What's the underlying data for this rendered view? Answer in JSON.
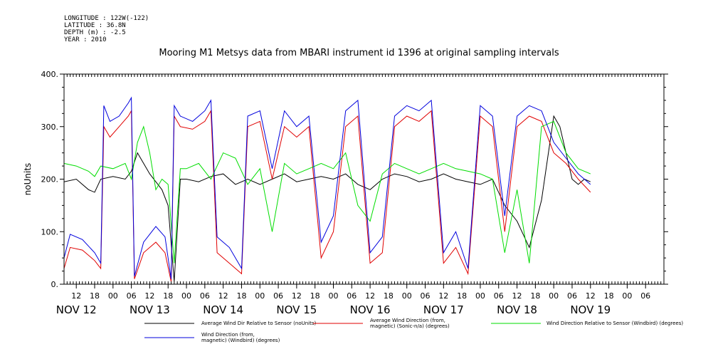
{
  "header": {
    "longitude": "LONGITUDE : 122W(-122)",
    "latitude": "LATITUDE : 36.8N",
    "depth": "DEPTH (m) : -2.5",
    "year": "YEAR : 2010",
    "title": "Mooring M1 Metsys data from MBARI instrument id 1396 at original sampling intervals"
  },
  "chart_data": {
    "type": "line",
    "title": "Mooring M1 Metsys data from MBARI instrument id 1396 at original sampling intervals",
    "ylabel": "noUnits",
    "xlabel": "",
    "ylim": [
      0,
      400
    ],
    "y_ticks": [
      0,
      100,
      200,
      300,
      400
    ],
    "y_tick_labels": [
      "0.",
      "100.",
      "200.",
      "300.",
      "400."
    ],
    "xlim": [
      "2010-11-11T08:00",
      "2010-11-19T12:00"
    ],
    "x_hour_labels": [
      {
        "t": "2010-11-11T12:00",
        "label": "12"
      },
      {
        "t": "2010-11-11T18:00",
        "label": "18"
      },
      {
        "t": "2010-11-12T00:00",
        "label": "00"
      },
      {
        "t": "2010-11-12T06:00",
        "label": "06"
      },
      {
        "t": "2010-11-12T12:00",
        "label": "12"
      },
      {
        "t": "2010-11-12T18:00",
        "label": "18"
      },
      {
        "t": "2010-11-13T00:00",
        "label": "00"
      },
      {
        "t": "2010-11-13T06:00",
        "label": "06"
      },
      {
        "t": "2010-11-13T12:00",
        "label": "12"
      },
      {
        "t": "2010-11-13T18:00",
        "label": "18"
      },
      {
        "t": "2010-11-14T00:00",
        "label": "00"
      },
      {
        "t": "2010-11-14T06:00",
        "label": "06"
      },
      {
        "t": "2010-11-14T12:00",
        "label": "12"
      },
      {
        "t": "2010-11-14T18:00",
        "label": "18"
      },
      {
        "t": "2010-11-15T00:00",
        "label": "00"
      },
      {
        "t": "2010-11-15T06:00",
        "label": "06"
      },
      {
        "t": "2010-11-15T12:00",
        "label": "12"
      },
      {
        "t": "2010-11-15T18:00",
        "label": "18"
      },
      {
        "t": "2010-11-16T00:00",
        "label": "00"
      },
      {
        "t": "2010-11-16T06:00",
        "label": "06"
      },
      {
        "t": "2010-11-16T12:00",
        "label": "12"
      },
      {
        "t": "2010-11-16T18:00",
        "label": "18"
      },
      {
        "t": "2010-11-17T00:00",
        "label": "00"
      },
      {
        "t": "2010-11-17T06:00",
        "label": "06"
      },
      {
        "t": "2010-11-17T12:00",
        "label": "12"
      },
      {
        "t": "2010-11-17T18:00",
        "label": "18"
      },
      {
        "t": "2010-11-18T00:00",
        "label": "00"
      },
      {
        "t": "2010-11-18T06:00",
        "label": "06"
      },
      {
        "t": "2010-11-18T12:00",
        "label": "12"
      },
      {
        "t": "2010-11-18T18:00",
        "label": "18"
      },
      {
        "t": "2010-11-19T00:00",
        "label": "00"
      },
      {
        "t": "2010-11-19T06:00",
        "label": "06"
      }
    ],
    "x_day_labels": [
      {
        "t": "2010-11-11T12:00",
        "label": "NOV 12"
      },
      {
        "t": "2010-11-12T12:00",
        "label": "NOV 13"
      },
      {
        "t": "2010-11-13T12:00",
        "label": "NOV 14"
      },
      {
        "t": "2010-11-14T12:00",
        "label": "NOV 15"
      },
      {
        "t": "2010-11-15T12:00",
        "label": "NOV 16"
      },
      {
        "t": "2010-11-16T12:00",
        "label": "NOV 17"
      },
      {
        "t": "2010-11-17T12:00",
        "label": "NOV 18"
      },
      {
        "t": "2010-11-18T12:00",
        "label": "NOV 19"
      }
    ],
    "legend_position": "bottom",
    "series": [
      {
        "name": "Average Wind Dir Relative to Sensor (noUnits)",
        "color": "#000000",
        "points": [
          [
            "2010-11-11T08:00",
            195
          ],
          [
            "2010-11-11T12:00",
            200
          ],
          [
            "2010-11-11T16:00",
            180
          ],
          [
            "2010-11-11T18:00",
            175
          ],
          [
            "2010-11-11T20:00",
            200
          ],
          [
            "2010-11-12T00:00",
            205
          ],
          [
            "2010-11-12T04:00",
            200
          ],
          [
            "2010-11-12T06:00",
            215
          ],
          [
            "2010-11-12T08:00",
            250
          ],
          [
            "2010-11-12T10:00",
            230
          ],
          [
            "2010-11-12T12:00",
            210
          ],
          [
            "2010-11-12T14:00",
            195
          ],
          [
            "2010-11-12T16:00",
            180
          ],
          [
            "2010-11-12T18:00",
            150
          ],
          [
            "2010-11-12T20:00",
            5
          ],
          [
            "2010-11-12T22:00",
            200
          ],
          [
            "2010-11-13T00:00",
            200
          ],
          [
            "2010-11-13T04:00",
            195
          ],
          [
            "2010-11-13T08:00",
            205
          ],
          [
            "2010-11-13T12:00",
            210
          ],
          [
            "2010-11-13T16:00",
            190
          ],
          [
            "2010-11-13T20:00",
            200
          ],
          [
            "2010-11-14T00:00",
            190
          ],
          [
            "2010-11-14T04:00",
            200
          ],
          [
            "2010-11-14T08:00",
            210
          ],
          [
            "2010-11-14T12:00",
            195
          ],
          [
            "2010-11-14T16:00",
            200
          ],
          [
            "2010-11-14T20:00",
            205
          ],
          [
            "2010-11-15T00:00",
            200
          ],
          [
            "2010-11-15T04:00",
            210
          ],
          [
            "2010-11-15T08:00",
            190
          ],
          [
            "2010-11-15T12:00",
            180
          ],
          [
            "2010-11-15T16:00",
            200
          ],
          [
            "2010-11-15T20:00",
            210
          ],
          [
            "2010-11-16T00:00",
            205
          ],
          [
            "2010-11-16T04:00",
            195
          ],
          [
            "2010-11-16T08:00",
            200
          ],
          [
            "2010-11-16T12:00",
            210
          ],
          [
            "2010-11-16T16:00",
            200
          ],
          [
            "2010-11-16T20:00",
            195
          ],
          [
            "2010-11-17T00:00",
            190
          ],
          [
            "2010-11-17T04:00",
            200
          ],
          [
            "2010-11-17T08:00",
            150
          ],
          [
            "2010-11-17T12:00",
            120
          ],
          [
            "2010-11-17T16:00",
            70
          ],
          [
            "2010-11-17T20:00",
            160
          ],
          [
            "2010-11-18T00:00",
            320
          ],
          [
            "2010-11-18T02:00",
            300
          ],
          [
            "2010-11-18T04:00",
            250
          ],
          [
            "2010-11-18T06:00",
            200
          ],
          [
            "2010-11-18T08:00",
            190
          ],
          [
            "2010-11-18T10:00",
            200
          ],
          [
            "2010-11-18T12:00",
            195
          ]
        ]
      },
      {
        "name": "Average Wind Direction (from, magnetic) (Sonic-n/a) (degrees)",
        "color": "#e00000",
        "points": [
          [
            "2010-11-11T08:00",
            30
          ],
          [
            "2010-11-11T10:00",
            70
          ],
          [
            "2010-11-11T14:00",
            65
          ],
          [
            "2010-11-11T18:00",
            45
          ],
          [
            "2010-11-11T20:00",
            30
          ],
          [
            "2010-11-11T21:00",
            300
          ],
          [
            "2010-11-11T23:00",
            280
          ],
          [
            "2010-11-12T02:00",
            300
          ],
          [
            "2010-11-12T05:00",
            320
          ],
          [
            "2010-11-12T06:00",
            330
          ],
          [
            "2010-11-12T07:00",
            10
          ],
          [
            "2010-11-12T10:00",
            60
          ],
          [
            "2010-11-12T14:00",
            80
          ],
          [
            "2010-11-12T17:00",
            60
          ],
          [
            "2010-11-12T19:00",
            5
          ],
          [
            "2010-11-12T20:00",
            320
          ],
          [
            "2010-11-12T22:00",
            300
          ],
          [
            "2010-11-13T02:00",
            295
          ],
          [
            "2010-11-13T06:00",
            310
          ],
          [
            "2010-11-13T08:00",
            330
          ],
          [
            "2010-11-13T10:00",
            60
          ],
          [
            "2010-11-13T14:00",
            40
          ],
          [
            "2010-11-13T18:00",
            20
          ],
          [
            "2010-11-13T20:00",
            300
          ],
          [
            "2010-11-14T00:00",
            310
          ],
          [
            "2010-11-14T04:00",
            200
          ],
          [
            "2010-11-14T08:00",
            300
          ],
          [
            "2010-11-14T12:00",
            280
          ],
          [
            "2010-11-14T16:00",
            300
          ],
          [
            "2010-11-14T20:00",
            50
          ],
          [
            "2010-11-15T00:00",
            100
          ],
          [
            "2010-11-15T04:00",
            300
          ],
          [
            "2010-11-15T08:00",
            320
          ],
          [
            "2010-11-15T12:00",
            40
          ],
          [
            "2010-11-15T16:00",
            60
          ],
          [
            "2010-11-15T20:00",
            300
          ],
          [
            "2010-11-16T00:00",
            320
          ],
          [
            "2010-11-16T04:00",
            310
          ],
          [
            "2010-11-16T08:00",
            330
          ],
          [
            "2010-11-16T12:00",
            40
          ],
          [
            "2010-11-16T16:00",
            70
          ],
          [
            "2010-11-16T20:00",
            20
          ],
          [
            "2010-11-17T00:00",
            320
          ],
          [
            "2010-11-17T04:00",
            300
          ],
          [
            "2010-11-17T08:00",
            100
          ],
          [
            "2010-11-17T12:00",
            300
          ],
          [
            "2010-11-17T16:00",
            320
          ],
          [
            "2010-11-17T20:00",
            310
          ],
          [
            "2010-11-18T00:00",
            250
          ],
          [
            "2010-11-18T04:00",
            230
          ],
          [
            "2010-11-18T08:00",
            200
          ],
          [
            "2010-11-18T12:00",
            175
          ]
        ]
      },
      {
        "name": "Wind Direction Relative to Sensor (Windbird) (degrees)",
        "color": "#00dd00",
        "points": [
          [
            "2010-11-11T08:00",
            230
          ],
          [
            "2010-11-11T12:00",
            225
          ],
          [
            "2010-11-11T16:00",
            215
          ],
          [
            "2010-11-11T18:00",
            205
          ],
          [
            "2010-11-11T20:00",
            225
          ],
          [
            "2010-11-12T00:00",
            220
          ],
          [
            "2010-11-12T04:00",
            230
          ],
          [
            "2010-11-12T06:00",
            200
          ],
          [
            "2010-11-12T08:00",
            270
          ],
          [
            "2010-11-12T10:00",
            300
          ],
          [
            "2010-11-12T12:00",
            250
          ],
          [
            "2010-11-12T14:00",
            180
          ],
          [
            "2010-11-12T16:00",
            200
          ],
          [
            "2010-11-12T18:00",
            190
          ],
          [
            "2010-11-12T20:00",
            40
          ],
          [
            "2010-11-12T22:00",
            220
          ],
          [
            "2010-11-13T00:00",
            220
          ],
          [
            "2010-11-13T04:00",
            230
          ],
          [
            "2010-11-13T08:00",
            200
          ],
          [
            "2010-11-13T12:00",
            250
          ],
          [
            "2010-11-13T16:00",
            240
          ],
          [
            "2010-11-13T20:00",
            190
          ],
          [
            "2010-11-14T00:00",
            220
          ],
          [
            "2010-11-14T04:00",
            100
          ],
          [
            "2010-11-14T08:00",
            230
          ],
          [
            "2010-11-14T12:00",
            210
          ],
          [
            "2010-11-14T16:00",
            220
          ],
          [
            "2010-11-14T20:00",
            230
          ],
          [
            "2010-11-15T00:00",
            220
          ],
          [
            "2010-11-15T04:00",
            250
          ],
          [
            "2010-11-15T08:00",
            150
          ],
          [
            "2010-11-15T12:00",
            120
          ],
          [
            "2010-11-15T16:00",
            210
          ],
          [
            "2010-11-15T20:00",
            230
          ],
          [
            "2010-11-16T00:00",
            220
          ],
          [
            "2010-11-16T04:00",
            210
          ],
          [
            "2010-11-16T08:00",
            220
          ],
          [
            "2010-11-16T12:00",
            230
          ],
          [
            "2010-11-16T16:00",
            220
          ],
          [
            "2010-11-16T20:00",
            215
          ],
          [
            "2010-11-17T00:00",
            210
          ],
          [
            "2010-11-17T04:00",
            200
          ],
          [
            "2010-11-17T08:00",
            60
          ],
          [
            "2010-11-17T12:00",
            180
          ],
          [
            "2010-11-17T16:00",
            40
          ],
          [
            "2010-11-17T20:00",
            300
          ],
          [
            "2010-11-18T00:00",
            310
          ],
          [
            "2010-11-18T04:00",
            250
          ],
          [
            "2010-11-18T08:00",
            220
          ],
          [
            "2010-11-18T12:00",
            210
          ]
        ]
      },
      {
        "name": "Wind Direction (from, magnetic) (Windbird) (degrees)",
        "color": "#0000dd",
        "points": [
          [
            "2010-11-11T08:00",
            50
          ],
          [
            "2010-11-11T10:00",
            95
          ],
          [
            "2010-11-11T14:00",
            85
          ],
          [
            "2010-11-11T18:00",
            60
          ],
          [
            "2010-11-11T20:00",
            40
          ],
          [
            "2010-11-11T21:00",
            340
          ],
          [
            "2010-11-11T23:00",
            310
          ],
          [
            "2010-11-12T02:00",
            320
          ],
          [
            "2010-11-12T05:00",
            345
          ],
          [
            "2010-11-12T06:00",
            355
          ],
          [
            "2010-11-12T07:00",
            15
          ],
          [
            "2010-11-12T10:00",
            80
          ],
          [
            "2010-11-12T14:00",
            110
          ],
          [
            "2010-11-12T17:00",
            90
          ],
          [
            "2010-11-12T19:00",
            10
          ],
          [
            "2010-11-12T20:00",
            340
          ],
          [
            "2010-11-12T22:00",
            320
          ],
          [
            "2010-11-13T02:00",
            310
          ],
          [
            "2010-11-13T06:00",
            330
          ],
          [
            "2010-11-13T08:00",
            350
          ],
          [
            "2010-11-13T10:00",
            90
          ],
          [
            "2010-11-13T14:00",
            70
          ],
          [
            "2010-11-13T18:00",
            30
          ],
          [
            "2010-11-13T20:00",
            320
          ],
          [
            "2010-11-14T00:00",
            330
          ],
          [
            "2010-11-14T04:00",
            220
          ],
          [
            "2010-11-14T08:00",
            330
          ],
          [
            "2010-11-14T12:00",
            300
          ],
          [
            "2010-11-14T16:00",
            320
          ],
          [
            "2010-11-14T20:00",
            80
          ],
          [
            "2010-11-15T00:00",
            130
          ],
          [
            "2010-11-15T04:00",
            330
          ],
          [
            "2010-11-15T08:00",
            350
          ],
          [
            "2010-11-15T12:00",
            60
          ],
          [
            "2010-11-15T16:00",
            90
          ],
          [
            "2010-11-15T20:00",
            320
          ],
          [
            "2010-11-16T00:00",
            340
          ],
          [
            "2010-11-16T04:00",
            330
          ],
          [
            "2010-11-16T08:00",
            350
          ],
          [
            "2010-11-16T12:00",
            60
          ],
          [
            "2010-11-16T16:00",
            100
          ],
          [
            "2010-11-16T20:00",
            30
          ],
          [
            "2010-11-17T00:00",
            340
          ],
          [
            "2010-11-17T04:00",
            320
          ],
          [
            "2010-11-17T08:00",
            130
          ],
          [
            "2010-11-17T12:00",
            320
          ],
          [
            "2010-11-17T16:00",
            340
          ],
          [
            "2010-11-17T20:00",
            330
          ],
          [
            "2010-11-18T00:00",
            270
          ],
          [
            "2010-11-18T04:00",
            240
          ],
          [
            "2010-11-18T08:00",
            210
          ],
          [
            "2010-11-18T12:00",
            190
          ]
        ]
      }
    ]
  }
}
